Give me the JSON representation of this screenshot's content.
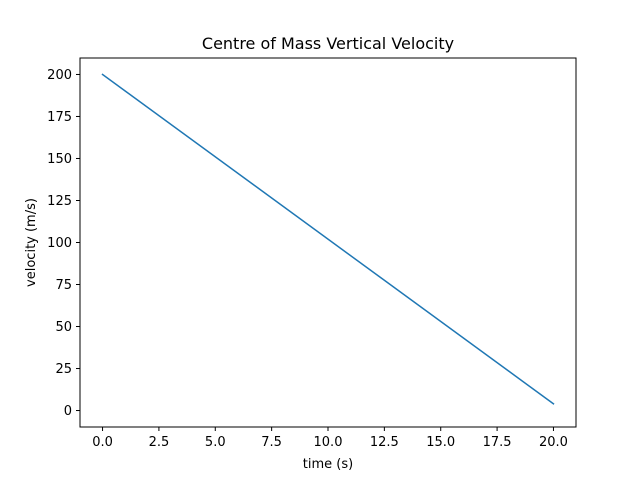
{
  "chart_data": {
    "type": "line",
    "title": "Centre of Mass Vertical Velocity",
    "xlabel": "time (s)",
    "ylabel": "velocity (m/s)",
    "xlim": [
      -1.0,
      21.0
    ],
    "ylim": [
      -9.8,
      209.8
    ],
    "grid": false,
    "legend": "none",
    "xticks": [
      0.0,
      2.5,
      5.0,
      7.5,
      10.0,
      12.5,
      15.0,
      17.5,
      20.0
    ],
    "xtick_labels": [
      "0.0",
      "2.5",
      "5.0",
      "7.5",
      "10.0",
      "12.5",
      "15.0",
      "17.5",
      "20.0"
    ],
    "yticks": [
      0,
      25,
      50,
      75,
      100,
      125,
      150,
      175,
      200
    ],
    "ytick_labels": [
      "0",
      "25",
      "50",
      "75",
      "100",
      "125",
      "150",
      "175",
      "200"
    ],
    "series": [
      {
        "color": "#1f77b4",
        "x": [
          0,
          20
        ],
        "y": [
          200,
          4
        ]
      }
    ]
  }
}
